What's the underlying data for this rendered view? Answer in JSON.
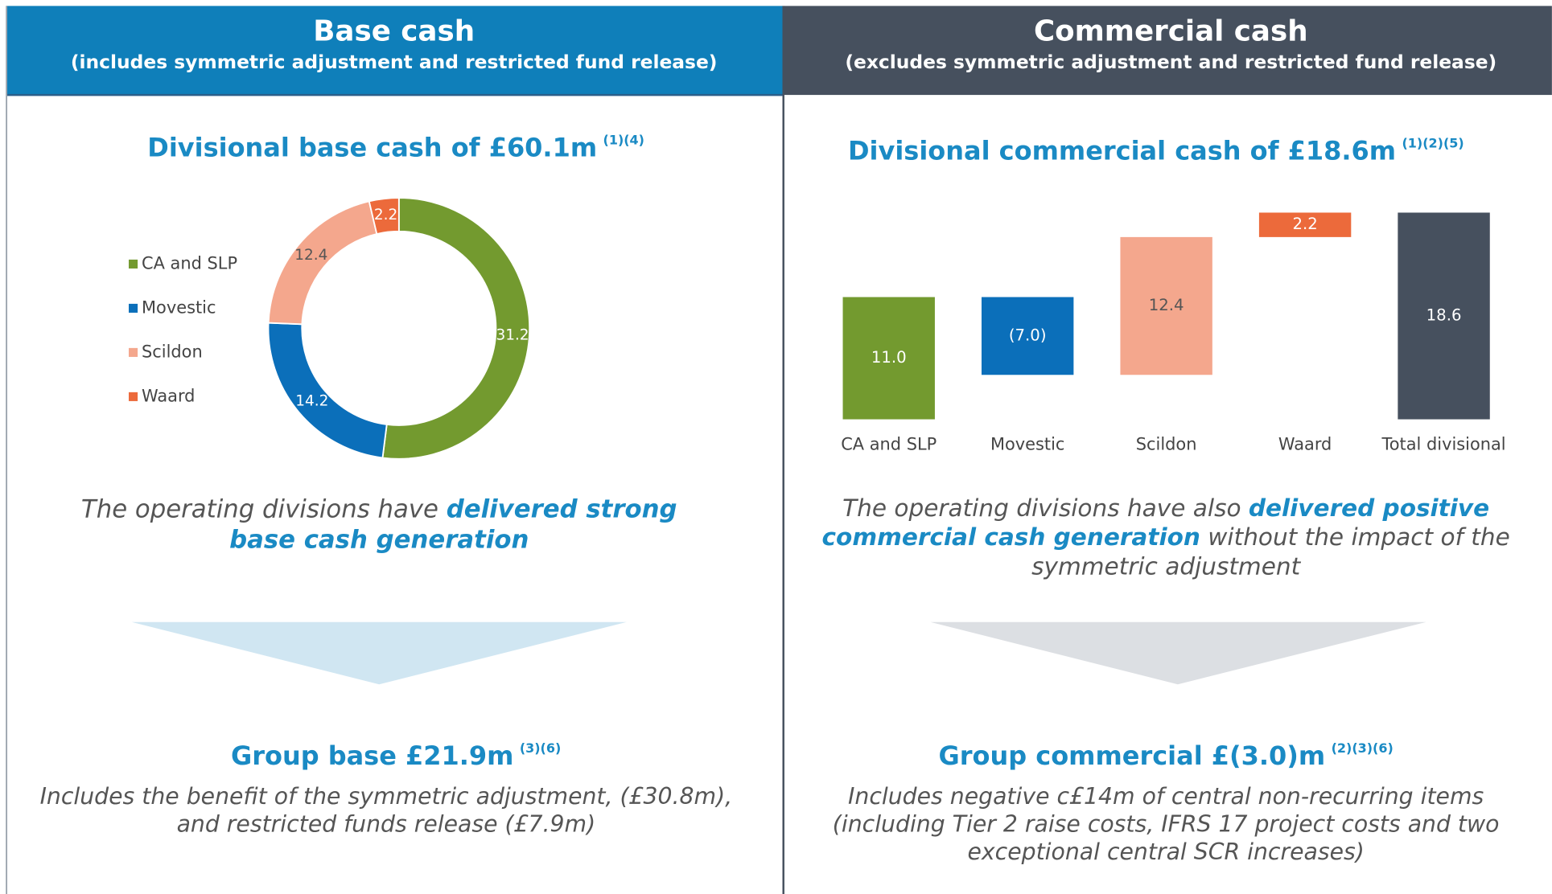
{
  "panels": [
    {
      "title": "Base cash",
      "subtitle": "(includes symmetric adjustment and restricted fund release)",
      "caption": [
        {
          "text": "The operating divisions have ",
          "bold": false
        },
        {
          "text": "delivered strong base cash generation",
          "bold": true
        }
      ],
      "result": "Group base £21.9m",
      "result_note": "(3)(6)",
      "note": "Includes the benefit of the symmetric adjustment, (£30.8m), and restricted funds release (£7.9m)"
    },
    {
      "title": "Commercial cash",
      "subtitle": "(excludes symmetric adjustment and restricted fund release)",
      "caption": [
        {
          "text": "The operating divisions have also ",
          "bold": false
        },
        {
          "text": "delivered positive commercial cash generation",
          "bold": true
        },
        {
          "text": " without the impact of the symmetric adjustment",
          "bold": false
        }
      ],
      "result": "Group commercial £(3.0)m",
      "result_note": "(2)(3)(6)",
      "note": "Includes negative c£14m of central non-recurring items (including Tier 2 raise costs, IFRS 17 project costs and two exceptional central SCR increases)"
    }
  ],
  "chart_data": [
    {
      "type": "donut",
      "title": "Divisional base cash of £60.1m",
      "title_note": "(1)(4)",
      "categories": [
        "CA and SLP",
        "Movestic",
        "Scildon",
        "Waard"
      ],
      "values": [
        31.2,
        14.2,
        12.4,
        2.2
      ],
      "colors": [
        "#739a2f",
        "#0b6fba",
        "#f4a78d",
        "#ec6a3b"
      ],
      "label_colors": [
        "#ffffff",
        "#ffffff",
        "#555555",
        "#ffffff"
      ],
      "legend": "left"
    },
    {
      "type": "waterfall",
      "title": "Divisional commercial cash of £18.6m",
      "title_note": "(1)(2)(5)",
      "categories": [
        "CA and SLP",
        "Movestic",
        "Scildon",
        "Waard",
        "Total divisional"
      ],
      "values": [
        11.0,
        -7.0,
        12.4,
        2.2,
        18.6
      ],
      "value_labels": [
        "11.0",
        "(7.0)",
        "12.4",
        "2.2",
        "18.6"
      ],
      "measures": [
        "relative",
        "relative",
        "relative",
        "relative",
        "total"
      ],
      "colors": [
        "#739a2f",
        "#0b6fba",
        "#f4a78d",
        "#ec6a3b",
        "#46505e"
      ],
      "label_colors": [
        "#ffffff",
        "#ffffff",
        "#555555",
        "#ffffff",
        "#ffffff"
      ]
    }
  ]
}
